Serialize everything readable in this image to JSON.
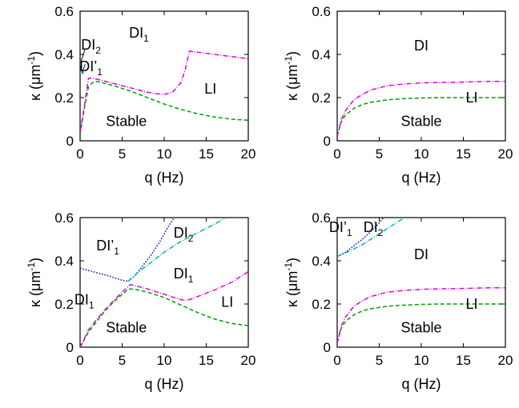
{
  "chart_data": [
    {
      "type": "line",
      "panel": "top-left",
      "xlabel": "q (Hz)",
      "ylabel": "κ (μm-1)",
      "ylabel_parts": {
        "main": "κ (μm",
        "sup": "-1",
        "end": ")"
      },
      "xlim": [
        0,
        20
      ],
      "ylim": [
        0,
        0.6
      ],
      "xticks": [
        0,
        5,
        10,
        15,
        20
      ],
      "yticks": [
        0,
        0.2,
        0.4,
        0.6
      ],
      "series": [
        {
          "color": "#00a000",
          "dash": "5,3",
          "x": [
            0,
            0.5,
            1,
            1.5,
            2,
            4,
            6,
            8,
            10,
            12,
            14,
            16,
            18,
            20
          ],
          "y": [
            0.03,
            0.15,
            0.25,
            0.27,
            0.275,
            0.255,
            0.23,
            0.2,
            0.17,
            0.145,
            0.125,
            0.11,
            0.1,
            0.095
          ]
        },
        {
          "color": "#e000e0",
          "dash": "6,2,1,2",
          "x": [
            0,
            0.5,
            1,
            1.5,
            2,
            4,
            6,
            8,
            9,
            10,
            11,
            12,
            12.5,
            13,
            14,
            16,
            18,
            20
          ],
          "y": [
            0.04,
            0.16,
            0.29,
            0.29,
            0.285,
            0.265,
            0.245,
            0.225,
            0.218,
            0.215,
            0.225,
            0.27,
            0.33,
            0.415,
            0.41,
            0.4,
            0.39,
            0.38
          ]
        },
        {
          "color": "#0000c0",
          "dash": "1.5,2",
          "x": [
            0,
            0.1,
            0.2,
            0.3,
            0.4
          ],
          "y": [
            0.38,
            0.35,
            0.32,
            0.31,
            0.305
          ]
        },
        {
          "color": "#00b0b0",
          "dash": "6,2,1,2",
          "x": [
            0,
            0.1,
            0.2,
            0.3,
            0.4
          ],
          "y": [
            0.37,
            0.345,
            0.325,
            0.315,
            0.31
          ]
        }
      ],
      "labels": [
        {
          "main": "DI",
          "sub": "2",
          "x": 1.3,
          "y": 0.445
        },
        {
          "main": "DI’",
          "sub": "1",
          "x": 1.3,
          "y": 0.345
        },
        {
          "main": "DI",
          "sub": "1",
          "x": 7.0,
          "y": 0.5
        },
        {
          "main": "LI",
          "x": 15.5,
          "y": 0.24
        },
        {
          "main": "Stable",
          "x": 5.5,
          "y": 0.09
        }
      ]
    },
    {
      "type": "line",
      "panel": "top-right",
      "xlabel": "q (Hz)",
      "ylabel": "κ (μm-1)",
      "ylabel_parts": {
        "main": "κ (μm",
        "sup": "-1",
        "end": ")"
      },
      "xlim": [
        0,
        20
      ],
      "ylim": [
        0,
        0.6
      ],
      "xticks": [
        0,
        5,
        10,
        15,
        20
      ],
      "yticks": [
        0,
        0.2,
        0.4,
        0.6
      ],
      "series": [
        {
          "color": "#00a000",
          "dash": "5,3",
          "x": [
            0,
            0.5,
            1,
            2,
            3,
            4,
            6,
            8,
            10,
            12,
            15,
            18,
            20
          ],
          "y": [
            0.02,
            0.09,
            0.12,
            0.15,
            0.168,
            0.178,
            0.19,
            0.195,
            0.198,
            0.2,
            0.2,
            0.2,
            0.2
          ]
        },
        {
          "color": "#e000e0",
          "dash": "6,2,1,2",
          "x": [
            0,
            0.5,
            1,
            2,
            3,
            4,
            6,
            8,
            10,
            12,
            15,
            18,
            20
          ],
          "y": [
            0.02,
            0.1,
            0.14,
            0.19,
            0.215,
            0.235,
            0.255,
            0.263,
            0.268,
            0.27,
            0.272,
            0.275,
            0.275
          ]
        }
      ],
      "labels": [
        {
          "main": "DI",
          "x": 10,
          "y": 0.44
        },
        {
          "main": "LI",
          "x": 16,
          "y": 0.2
        },
        {
          "main": "Stable",
          "x": 10,
          "y": 0.09
        }
      ]
    },
    {
      "type": "line",
      "panel": "bottom-left",
      "xlabel": "q (Hz)",
      "ylabel": "κ (μm-1)",
      "ylabel_parts": {
        "main": "κ (μm",
        "sup": "-1",
        "end": ")"
      },
      "xlim": [
        0,
        20
      ],
      "ylim": [
        0,
        0.6
      ],
      "xticks": [
        0,
        5,
        10,
        15,
        20
      ],
      "yticks": [
        0,
        0.2,
        0.4,
        0.6
      ],
      "series": [
        {
          "color": "#00a000",
          "dash": "5,3",
          "x": [
            0,
            1,
            2,
            3,
            4,
            5,
            5.8,
            6.5,
            8,
            10,
            12,
            14,
            16,
            18,
            20
          ],
          "y": [
            0.0,
            0.07,
            0.12,
            0.17,
            0.21,
            0.245,
            0.27,
            0.268,
            0.255,
            0.23,
            0.195,
            0.16,
            0.13,
            0.11,
            0.1
          ]
        },
        {
          "color": "#e000e0",
          "dash": "6,2,1,2",
          "x": [
            0,
            1,
            2,
            3,
            4,
            5,
            6,
            7,
            8,
            10,
            12,
            12.5,
            13,
            14,
            16,
            18,
            20
          ],
          "y": [
            0.0,
            0.08,
            0.13,
            0.175,
            0.215,
            0.255,
            0.29,
            0.28,
            0.27,
            0.245,
            0.22,
            0.217,
            0.22,
            0.235,
            0.265,
            0.3,
            0.35
          ]
        },
        {
          "color": "#0000c0",
          "dash": "1.5,2",
          "x": [
            0,
            1,
            2,
            3,
            4,
            5,
            5.7,
            6.5,
            7.5,
            8.5,
            9.5,
            10.5,
            11.2
          ],
          "y": [
            0.365,
            0.355,
            0.345,
            0.335,
            0.322,
            0.31,
            0.305,
            0.33,
            0.38,
            0.43,
            0.49,
            0.56,
            0.6
          ]
        },
        {
          "color": "#00b0b0",
          "dash": "6,2,1,2",
          "x": [
            5.7,
            7,
            8,
            9,
            10,
            12,
            14,
            16,
            17.3
          ],
          "y": [
            0.305,
            0.35,
            0.38,
            0.41,
            0.44,
            0.49,
            0.53,
            0.57,
            0.6
          ]
        }
      ],
      "labels": [
        {
          "main": "DI’",
          "sub": "1",
          "x": 3.3,
          "y": 0.47
        },
        {
          "main": "DI",
          "sub": "2",
          "x": 12.3,
          "y": 0.53
        },
        {
          "main": "DI",
          "sub": "1",
          "x": 12.3,
          "y": 0.34
        },
        {
          "main": "DI",
          "sub": "1",
          "x": 0.5,
          "y": 0.22
        },
        {
          "main": "LI",
          "x": 17.5,
          "y": 0.21
        },
        {
          "main": "Stable",
          "x": 5.5,
          "y": 0.09
        }
      ]
    },
    {
      "type": "line",
      "panel": "bottom-right",
      "xlabel": "q (Hz)",
      "ylabel": "κ (μm-1)",
      "ylabel_parts": {
        "main": "κ (μm",
        "sup": "-1",
        "end": ")"
      },
      "xlim": [
        0,
        20
      ],
      "ylim": [
        0,
        0.6
      ],
      "xticks": [
        0,
        5,
        10,
        15,
        20
      ],
      "yticks": [
        0,
        0.2,
        0.4,
        0.6
      ],
      "series": [
        {
          "color": "#00a000",
          "dash": "5,3",
          "x": [
            0,
            0.5,
            1,
            2,
            3,
            4,
            6,
            8,
            10,
            12,
            15,
            18,
            20
          ],
          "y": [
            0.02,
            0.09,
            0.12,
            0.15,
            0.168,
            0.178,
            0.19,
            0.195,
            0.198,
            0.2,
            0.2,
            0.2,
            0.2
          ]
        },
        {
          "color": "#e000e0",
          "dash": "6,2,1,2",
          "x": [
            0,
            0.5,
            1,
            2,
            3,
            4,
            6,
            8,
            10,
            12,
            15,
            18,
            20
          ],
          "y": [
            0.02,
            0.1,
            0.14,
            0.19,
            0.215,
            0.235,
            0.255,
            0.263,
            0.268,
            0.27,
            0.272,
            0.275,
            0.275
          ]
        },
        {
          "color": "#0000c0",
          "dash": "1.5,2",
          "x": [
            0,
            1,
            2,
            3,
            4,
            5,
            5.5
          ],
          "y": [
            0.42,
            0.44,
            0.47,
            0.5,
            0.535,
            0.575,
            0.6
          ]
        },
        {
          "color": "#00b0b0",
          "dash": "6,2,1,2",
          "x": [
            0,
            1,
            2,
            3,
            4,
            5,
            6,
            7,
            8
          ],
          "y": [
            0.42,
            0.437,
            0.455,
            0.475,
            0.5,
            0.525,
            0.55,
            0.575,
            0.6
          ]
        }
      ],
      "labels": [
        {
          "main": "DI’",
          "sub": "1",
          "x": 0.4,
          "y": 0.555
        },
        {
          "main": "DI",
          "sub": "2",
          "x": 4.3,
          "y": 0.555
        },
        {
          "main": "DI",
          "x": 10,
          "y": 0.43
        },
        {
          "main": "LI",
          "x": 16,
          "y": 0.2
        },
        {
          "main": "Stable",
          "x": 10,
          "y": 0.09
        }
      ]
    }
  ]
}
